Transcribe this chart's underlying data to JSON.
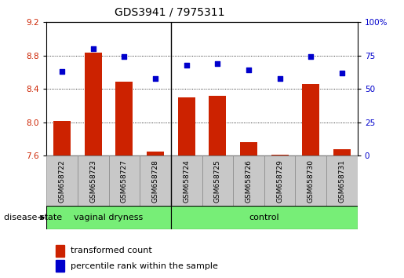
{
  "title": "GDS3941 / 7975311",
  "samples": [
    "GSM658722",
    "GSM658723",
    "GSM658727",
    "GSM658728",
    "GSM658724",
    "GSM658725",
    "GSM658726",
    "GSM658729",
    "GSM658730",
    "GSM658731"
  ],
  "bar_values": [
    8.02,
    8.84,
    8.49,
    7.65,
    8.3,
    8.32,
    7.76,
    7.61,
    8.46,
    7.68
  ],
  "dot_values": [
    63,
    80,
    74,
    58,
    68,
    69,
    64,
    58,
    74,
    62
  ],
  "ylim_left": [
    7.6,
    9.2
  ],
  "ylim_right": [
    0,
    100
  ],
  "yticks_left": [
    7.6,
    8.0,
    8.4,
    8.8,
    9.2
  ],
  "yticks_right": [
    0,
    25,
    50,
    75,
    100
  ],
  "bar_color": "#cc2200",
  "dot_color": "#0000cc",
  "group1_label": "vaginal dryness",
  "group2_label": "control",
  "group1_count": 4,
  "group2_count": 6,
  "group_bar_color": "#77ee77",
  "disease_state_label": "disease state",
  "legend_bar_label": "transformed count",
  "legend_dot_label": "percentile rank within the sample",
  "tick_label_color_left": "#cc2200",
  "tick_label_color_right": "#0000cc",
  "title_fontsize": 10,
  "axis_fontsize": 7.5,
  "legend_fontsize": 8,
  "group_fontsize": 8,
  "sample_fontsize": 6.5,
  "col_bg_color": "#cccccc",
  "col_alt_bg_color": "#dddddd"
}
